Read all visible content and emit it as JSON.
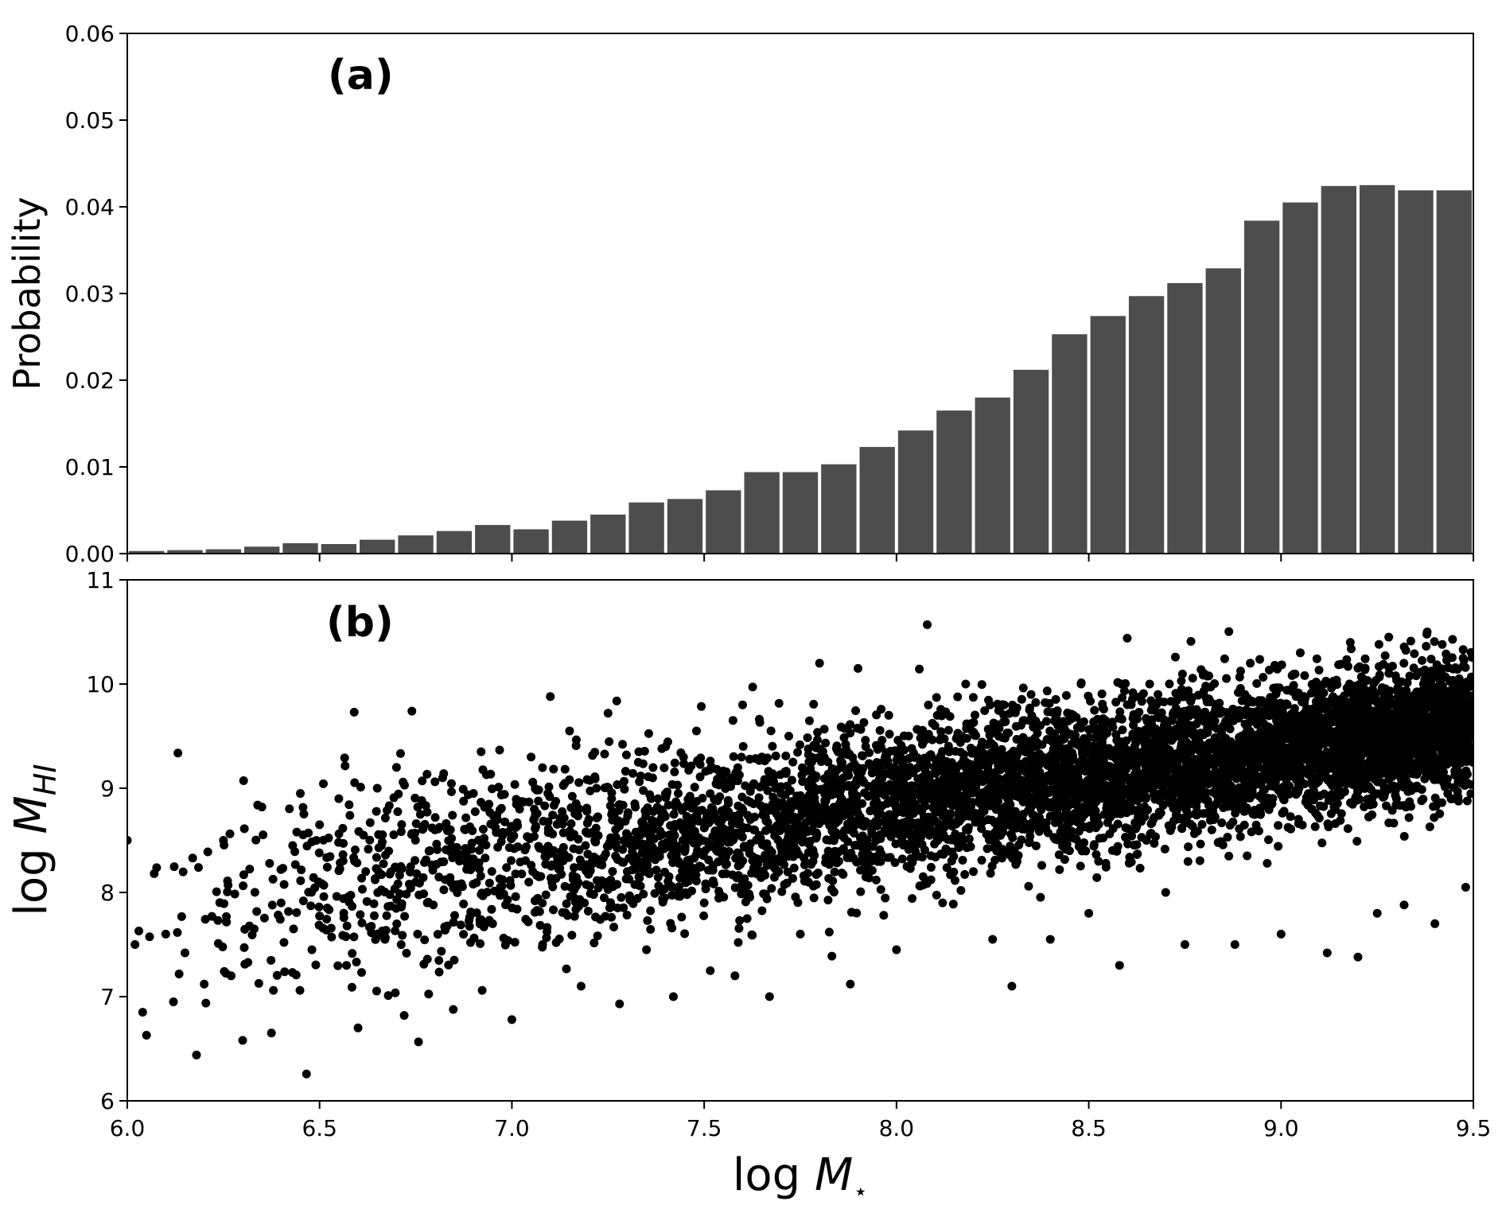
{
  "chart_data": [
    {
      "type": "bar",
      "panel_label": "(a)",
      "ylabel": "Probability",
      "xlim": [
        6.0,
        9.5
      ],
      "ylim": [
        0.0,
        0.06
      ],
      "yticks": [
        "0.00",
        "0.01",
        "0.02",
        "0.03",
        "0.04",
        "0.05",
        "0.06"
      ],
      "bar_color": "#4d4d4d",
      "bin_width": 0.1,
      "bin_starts": [
        6.0,
        6.1,
        6.2,
        6.3,
        6.4,
        6.5,
        6.6,
        6.7,
        6.8,
        6.9,
        7.0,
        7.1,
        7.2,
        7.3,
        7.4,
        7.5,
        7.6,
        7.7,
        7.8,
        7.9,
        8.0,
        8.1,
        8.2,
        8.3,
        8.4,
        8.5,
        8.6,
        8.7,
        8.8,
        8.9,
        9.0,
        9.1,
        9.2,
        9.3,
        9.4
      ],
      "values": [
        0.0003,
        0.0004,
        0.0005,
        0.0008,
        0.0012,
        0.0011,
        0.0016,
        0.0021,
        0.0026,
        0.0033,
        0.0028,
        0.0038,
        0.0045,
        0.0059,
        0.0063,
        0.0073,
        0.0094,
        0.0094,
        0.0103,
        0.0123,
        0.0142,
        0.0165,
        0.018,
        0.0212,
        0.0253,
        0.0274,
        0.0297,
        0.0312,
        0.0329,
        0.0384,
        0.0405,
        0.0424,
        0.0425,
        0.0419,
        0.0419
      ]
    },
    {
      "type": "scatter",
      "panel_label": "(b)",
      "xlabel": "log M⋆",
      "ylabel": "log M_HI",
      "xlim": [
        6.0,
        9.5
      ],
      "ylim": [
        6,
        11
      ],
      "xticks": [
        "6.0",
        "6.5",
        "7.0",
        "7.5",
        "8.0",
        "8.5",
        "9.0",
        "9.5"
      ],
      "yticks": [
        "6",
        "7",
        "8",
        "9",
        "10",
        "11"
      ],
      "marker_color": "#000000",
      "points": [
        [
          6.0,
          8.5
        ],
        [
          6.02,
          7.5
        ],
        [
          6.03,
          7.63
        ],
        [
          6.04,
          6.85
        ],
        [
          6.05,
          6.63
        ],
        [
          6.07,
          8.18
        ],
        [
          6.1,
          7.6
        ],
        [
          6.12,
          6.95
        ],
        [
          6.15,
          7.42
        ],
        [
          6.17,
          8.33
        ],
        [
          6.18,
          6.44
        ],
        [
          6.2,
          7.12
        ],
        [
          6.22,
          7.77
        ],
        [
          6.25,
          8.5
        ],
        [
          6.27,
          7.2
        ],
        [
          6.3,
          6.58
        ],
        [
          6.33,
          7.65
        ],
        [
          6.35,
          8.82
        ],
        [
          6.38,
          7.06
        ],
        [
          6.4,
          7.9
        ],
        [
          6.43,
          8.45
        ],
        [
          6.45,
          8.95
        ],
        [
          6.48,
          7.45
        ],
        [
          6.5,
          8.65
        ],
        [
          6.52,
          7.85
        ],
        [
          6.55,
          8.9
        ],
        [
          6.57,
          7.3
        ],
        [
          6.59,
          9.73
        ],
        [
          6.6,
          6.7
        ],
        [
          6.62,
          8.2
        ],
        [
          6.65,
          9.0
        ],
        [
          6.67,
          7.55
        ],
        [
          6.7,
          9.2
        ],
        [
          6.72,
          6.82
        ],
        [
          6.74,
          9.74
        ],
        [
          6.75,
          8.1
        ],
        [
          6.78,
          7.9
        ],
        [
          6.8,
          8.6
        ],
        [
          6.82,
          9.1
        ],
        [
          6.85,
          7.35
        ],
        [
          6.88,
          8.4
        ],
        [
          6.9,
          8.95
        ],
        [
          6.92,
          9.35
        ],
        [
          6.95,
          7.7
        ],
        [
          6.97,
          8.05
        ],
        [
          7.0,
          6.78
        ],
        [
          7.02,
          8.8
        ],
        [
          7.05,
          9.3
        ],
        [
          7.08,
          7.5
        ],
        [
          7.1,
          9.88
        ],
        [
          7.12,
          8.3
        ],
        [
          7.15,
          9.55
        ],
        [
          7.18,
          7.1
        ],
        [
          7.2,
          8.7
        ],
        [
          7.22,
          9.0
        ],
        [
          7.25,
          9.72
        ],
        [
          7.28,
          6.93
        ],
        [
          7.3,
          8.2
        ],
        [
          7.33,
          9.35
        ],
        [
          7.35,
          7.45
        ],
        [
          7.38,
          8.9
        ],
        [
          7.4,
          9.4
        ],
        [
          7.42,
          7.0
        ],
        [
          7.45,
          8.6
        ],
        [
          7.48,
          9.55
        ],
        [
          7.5,
          7.9
        ],
        [
          7.52,
          9.2
        ],
        [
          7.55,
          8.4
        ],
        [
          7.58,
          7.2
        ],
        [
          7.6,
          9.8
        ],
        [
          7.62,
          8.7
        ],
        [
          7.65,
          9.3
        ],
        [
          7.67,
          7.0
        ],
        [
          7.7,
          8.95
        ],
        [
          7.72,
          9.5
        ],
        [
          7.75,
          7.6
        ],
        [
          7.78,
          8.6
        ],
        [
          7.8,
          10.2
        ],
        [
          7.82,
          9.1
        ],
        [
          7.85,
          8.3
        ],
        [
          7.88,
          7.12
        ],
        [
          7.9,
          10.15
        ],
        [
          7.92,
          9.4
        ],
        [
          7.95,
          8.8
        ],
        [
          7.98,
          9.7
        ],
        [
          8.0,
          7.45
        ],
        [
          8.02,
          9.2
        ],
        [
          8.05,
          8.5
        ],
        [
          8.08,
          10.57
        ],
        [
          8.1,
          9.6
        ],
        [
          8.12,
          7.9
        ],
        [
          8.15,
          9.0
        ],
        [
          8.18,
          10.0
        ],
        [
          8.2,
          8.2
        ],
        [
          8.22,
          9.4
        ],
        [
          8.25,
          7.55
        ],
        [
          8.28,
          9.8
        ],
        [
          8.3,
          7.1
        ],
        [
          8.32,
          8.7
        ],
        [
          8.35,
          9.9
        ],
        [
          8.38,
          9.3
        ],
        [
          8.4,
          7.55
        ],
        [
          8.42,
          9.6
        ],
        [
          8.45,
          8.4
        ],
        [
          8.48,
          10.0
        ],
        [
          8.5,
          7.8
        ],
        [
          8.52,
          9.3
        ],
        [
          8.55,
          8.9
        ],
        [
          8.58,
          7.3
        ],
        [
          8.6,
          10.44
        ],
        [
          8.62,
          9.5
        ],
        [
          8.65,
          8.5
        ],
        [
          8.68,
          9.9
        ],
        [
          8.7,
          8.0
        ],
        [
          8.72,
          9.7
        ],
        [
          8.75,
          7.5
        ],
        [
          8.78,
          9.2
        ],
        [
          8.8,
          10.1
        ],
        [
          8.82,
          8.6
        ],
        [
          8.85,
          9.6
        ],
        [
          8.88,
          7.5
        ],
        [
          8.9,
          9.3
        ],
        [
          8.92,
          10.2
        ],
        [
          8.95,
          8.9
        ],
        [
          8.98,
          9.7
        ],
        [
          9.0,
          7.6
        ],
        [
          9.02,
          9.5
        ],
        [
          9.05,
          10.3
        ],
        [
          9.08,
          8.8
        ],
        [
          9.1,
          9.9
        ],
        [
          9.12,
          7.42
        ],
        [
          9.15,
          9.2
        ],
        [
          9.18,
          10.4
        ],
        [
          9.2,
          7.38
        ],
        [
          9.22,
          9.6
        ],
        [
          9.25,
          7.8
        ],
        [
          9.28,
          10.45
        ],
        [
          9.3,
          8.9
        ],
        [
          9.32,
          7.88
        ],
        [
          9.35,
          9.7
        ],
        [
          9.38,
          10.5
        ],
        [
          9.4,
          7.7
        ],
        [
          9.42,
          9.3
        ],
        [
          9.45,
          8.9
        ],
        [
          9.48,
          8.05
        ],
        [
          9.5,
          9.8
        ]
      ]
    }
  ]
}
